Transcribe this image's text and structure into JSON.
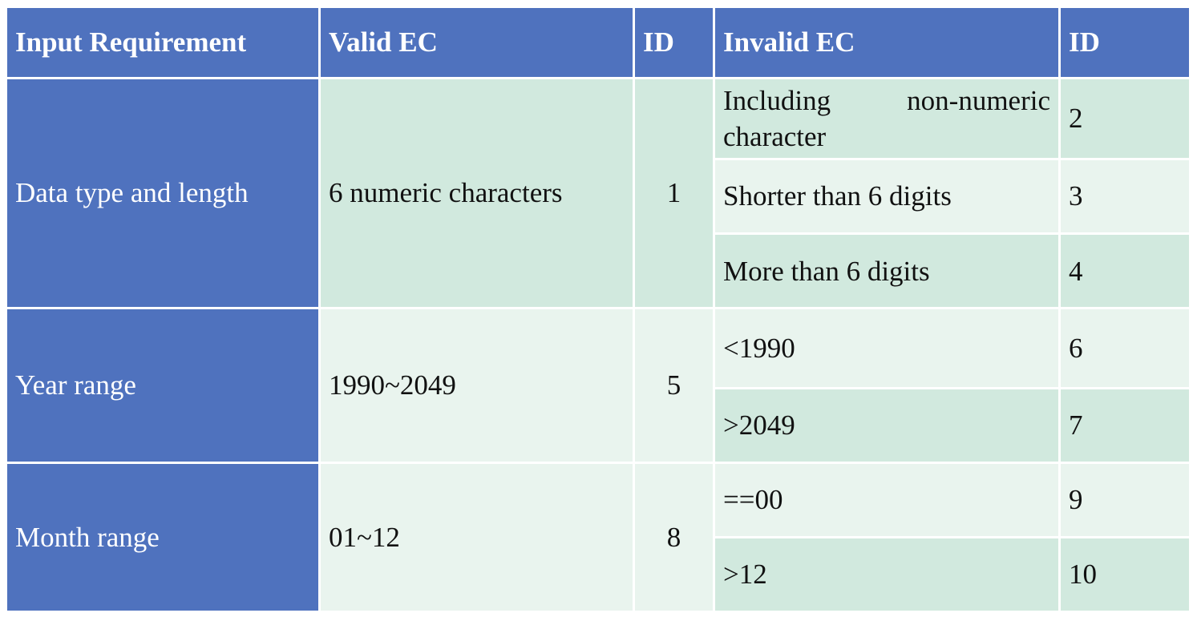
{
  "header": {
    "input_requirement": "Input Requirement",
    "valid_ec": "Valid EC",
    "valid_id": "ID",
    "invalid_ec": "Invalid EC",
    "invalid_id": "ID"
  },
  "rows": [
    {
      "requirement": "Data type and length",
      "valid_ec": "6 numeric characters",
      "valid_id": "1",
      "invalid": [
        {
          "ec": "Including non-numeric character",
          "id": "2"
        },
        {
          "ec": "Shorter than 6 digits",
          "id": "3"
        },
        {
          "ec": "More than 6 digits",
          "id": "4"
        }
      ]
    },
    {
      "requirement": "Year range",
      "valid_ec": "1990~2049",
      "valid_id": "5",
      "invalid": [
        {
          "ec": "<1990",
          "id": "6"
        },
        {
          "ec": ">2049",
          "id": "7"
        }
      ]
    },
    {
      "requirement": "Month range",
      "valid_ec": "01~12",
      "valid_id": "8",
      "invalid": [
        {
          "ec": "==00",
          "id": "9"
        },
        {
          "ec": ">12",
          "id": "10"
        }
      ]
    }
  ],
  "colors": {
    "header_blue": "#4f72be",
    "cell_dark_green": "#d1e9de",
    "cell_light_green": "#e9f4ee"
  }
}
